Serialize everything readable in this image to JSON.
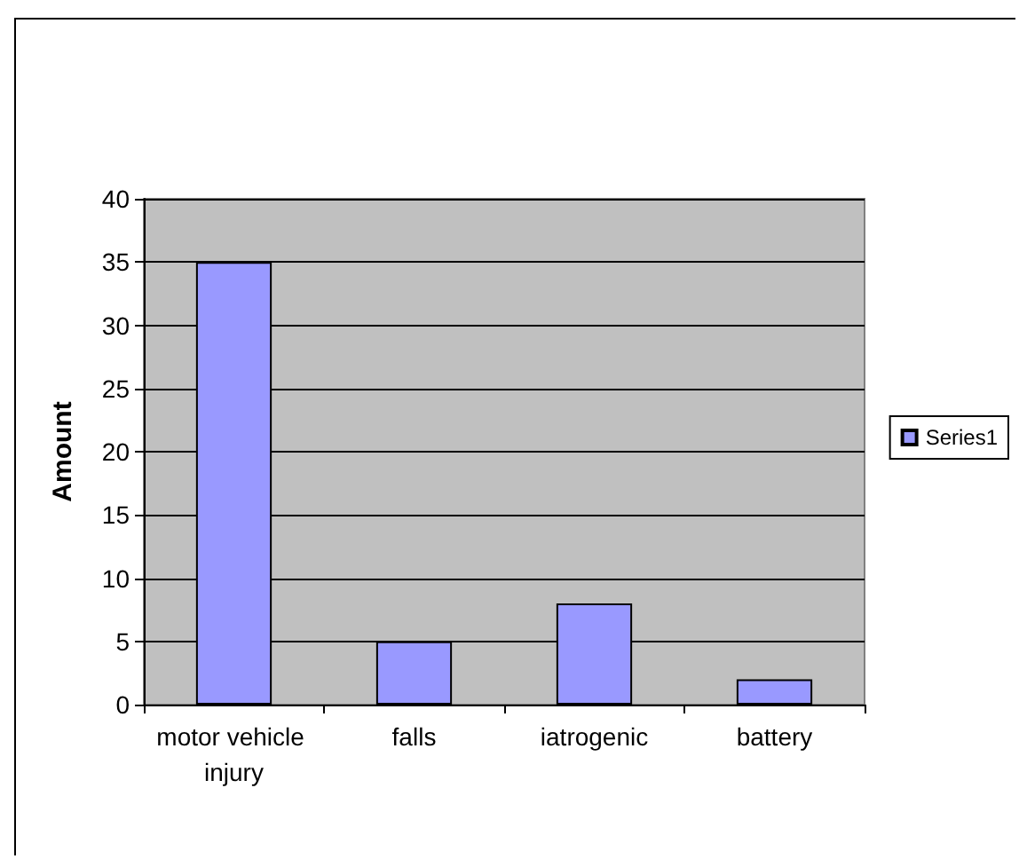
{
  "chart_data": {
    "type": "bar",
    "ylabel": "Amount",
    "categories": [
      "motor vehicle injury",
      "falls",
      "iatrogenic",
      "battery"
    ],
    "series": [
      {
        "name": "Series1",
        "color": "#9999ff",
        "values": [
          35,
          5,
          8,
          2
        ]
      }
    ],
    "ylim": [
      0,
      40
    ],
    "yticks": [
      0,
      5,
      10,
      15,
      20,
      25,
      30,
      35,
      40
    ],
    "grid": "y",
    "legend": "right"
  }
}
